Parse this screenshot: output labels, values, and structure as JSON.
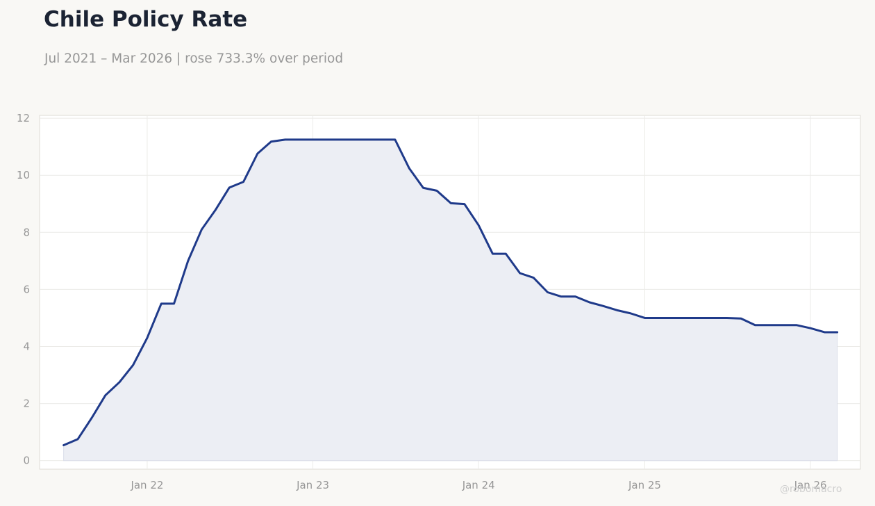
{
  "header": {
    "title": "Chile Policy Rate",
    "subtitle": "Jul 2021 – Mar 2026 | rose 733.3% over period"
  },
  "watermark": "@robomacro",
  "colors": {
    "background": "#f9f8f5",
    "plot_background": "#ffffff",
    "line": "#1f3a8a",
    "fill": "#eceef4",
    "grid": "#ecebe8",
    "tick_text": "#979797"
  },
  "chart_data": {
    "type": "area",
    "title": "Chile Policy Rate",
    "subtitle": "Jul 2021 – Mar 2026 | rose 733.3% over period",
    "xlabel": "",
    "ylabel": "",
    "ylim": [
      -0.3,
      12.1
    ],
    "xlim": [
      "2021-05-09",
      "2026-04-21"
    ],
    "grid": true,
    "x_ticks": [
      {
        "date": "2022-01-01",
        "label": "Jan 22"
      },
      {
        "date": "2023-01-01",
        "label": "Jan 23"
      },
      {
        "date": "2024-01-01",
        "label": "Jan 24"
      },
      {
        "date": "2025-01-01",
        "label": "Jan 25"
      },
      {
        "date": "2026-01-01",
        "label": "Jan 26"
      }
    ],
    "y_ticks": [
      0,
      2,
      4,
      6,
      8,
      10,
      12
    ],
    "series": [
      {
        "x": [
          "2021-07-01",
          "2021-08-01",
          "2021-09-01",
          "2021-10-01",
          "2021-11-01",
          "2021-12-01",
          "2022-01-01",
          "2022-02-01",
          "2022-03-01",
          "2022-04-01",
          "2022-05-01",
          "2022-06-01",
          "2022-07-01",
          "2022-08-01",
          "2022-09-01",
          "2022-10-01",
          "2022-11-01",
          "2022-12-01",
          "2023-01-01",
          "2023-02-01",
          "2023-03-01",
          "2023-04-01",
          "2023-05-01",
          "2023-06-01",
          "2023-07-01",
          "2023-08-01",
          "2023-09-01",
          "2023-10-01",
          "2023-11-01",
          "2023-12-01",
          "2024-01-01",
          "2024-02-01",
          "2024-03-01",
          "2024-04-01",
          "2024-05-01",
          "2024-06-01",
          "2024-07-01",
          "2024-08-01",
          "2024-09-01",
          "2024-10-01",
          "2024-11-01",
          "2024-12-01",
          "2025-01-01",
          "2025-02-01",
          "2025-03-01",
          "2025-04-01",
          "2025-05-01",
          "2025-06-01",
          "2025-07-01",
          "2025-08-01",
          "2025-09-01",
          "2025-10-01",
          "2025-11-01",
          "2025-12-01",
          "2026-01-01",
          "2026-02-01",
          "2026-03-01"
        ],
        "values": [
          0.54,
          0.75,
          1.5,
          2.29,
          2.75,
          3.35,
          4.3,
          5.5,
          5.5,
          7.0,
          8.1,
          8.8,
          9.57,
          9.77,
          10.76,
          11.18,
          11.25,
          11.25,
          11.25,
          11.25,
          11.25,
          11.25,
          11.25,
          11.25,
          11.25,
          10.25,
          9.56,
          9.46,
          9.02,
          8.99,
          8.25,
          7.25,
          7.25,
          6.57,
          6.41,
          5.9,
          5.75,
          5.75,
          5.55,
          5.42,
          5.27,
          5.16,
          5.0,
          5.0,
          5.0,
          5.0,
          5.0,
          5.0,
          5.0,
          4.98,
          4.75,
          4.75,
          4.75,
          4.75,
          4.64,
          4.5,
          4.5
        ]
      }
    ]
  }
}
